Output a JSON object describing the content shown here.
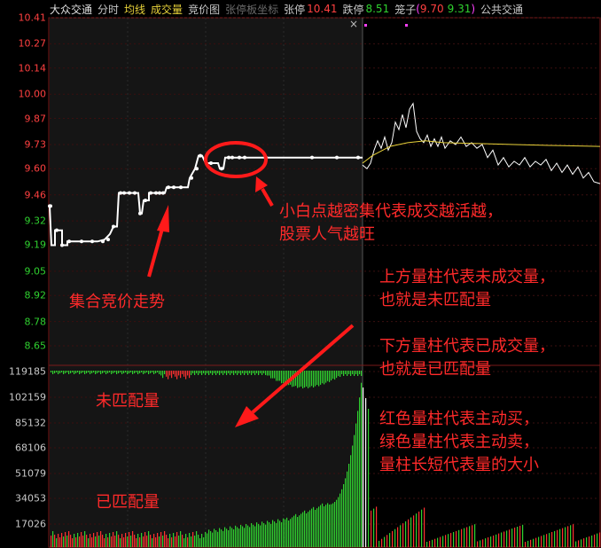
{
  "header": {
    "stock_name": "大众交通",
    "tab_timeshare": "分时",
    "tab_avg": "均线",
    "tab_volume": "成交量",
    "tab_auction": "竞价图",
    "tab_limit_coord": "张停板坐标",
    "limit_up_label": "张停",
    "limit_up_value": "10.41",
    "limit_down_label": "跌停",
    "limit_down_value": "8.51",
    "cage_label": "笼子",
    "cage_open": "(",
    "cage_high": "9.70",
    "cage_low": "9.31",
    "cage_close": ")",
    "sector": "公共交通"
  },
  "colors": {
    "up": "#ff4040",
    "down": "#2fd12f",
    "avg_line": "#e8d23a",
    "annotation": "#ff2a2a"
  },
  "price_axis": {
    "labels": [
      "10.41",
      "10.27",
      "10.14",
      "10.00",
      "9.87",
      "9.73",
      "9.60",
      "9.46",
      "9.32",
      "9.19",
      "9.05",
      "8.92",
      "8.78",
      "8.65"
    ],
    "ref_price": "9.46"
  },
  "volume_axis": {
    "labels": [
      "119185",
      "102159",
      "85132",
      "68106",
      "51079",
      "34053",
      "17026"
    ]
  },
  "annotations": {
    "dots_title": "小白点越密集代表成交越活越，",
    "dots_sub": "股票人气越旺",
    "auction_trend": "集合竞价走势",
    "upper_bars_1": "上方量柱代表未成交量，",
    "upper_bars_2": "也就是未匹配量",
    "lower_bars_1": "下方量柱代表已成交量，",
    "lower_bars_2": "也就是已匹配量",
    "unmatched": "未匹配量",
    "matched": "已匹配量",
    "color_1": "红色量柱代表主动买，",
    "color_2": "绿色量柱代表主动卖，",
    "color_3": "量柱长短代表量的大小"
  },
  "close_icon": "×"
}
